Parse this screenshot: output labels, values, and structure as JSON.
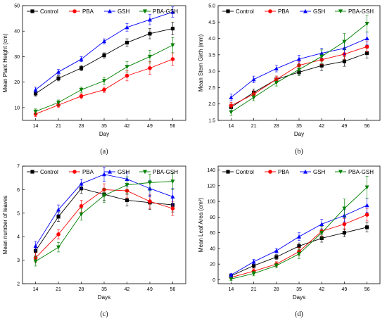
{
  "styles": {
    "Control": {
      "color": "#000000",
      "marker": "square"
    },
    "PBA": {
      "color": "#ff0000",
      "marker": "circle"
    },
    "GSH": {
      "color": "#0000ff",
      "marker": "triangle-up"
    },
    "PBA-GSH": {
      "color": "#008000",
      "marker": "triangle-down"
    }
  },
  "chart_data": [
    {
      "type": "line",
      "panel_label": "(a)",
      "xlabel": "Day",
      "ylabel": "Mean Plant Height (cm)",
      "x": [
        14,
        21,
        28,
        35,
        42,
        49,
        56
      ],
      "ylim": [
        5,
        50
      ],
      "yticks": [
        10,
        20,
        30,
        40,
        50
      ],
      "legend": "top",
      "series": [
        {
          "name": "Control",
          "values": [
            15.5,
            21.5,
            25.5,
            30.5,
            35.5,
            39,
            41
          ],
          "errors": [
            1,
            1,
            1,
            1,
            1.5,
            2,
            2.5
          ]
        },
        {
          "name": "PBA",
          "values": [
            7.5,
            11,
            14.5,
            17,
            22.5,
            25.5,
            29
          ],
          "errors": [
            1,
            1,
            1,
            1,
            2,
            2.5,
            2.5
          ]
        },
        {
          "name": "GSH",
          "values": [
            17,
            24,
            29,
            36,
            41.5,
            44.5,
            47.5
          ],
          "errors": [
            1,
            1,
            1,
            1,
            1.5,
            2,
            2
          ]
        },
        {
          "name": "PBA-GSH",
          "values": [
            8.5,
            12,
            17,
            20.5,
            26,
            30,
            34.5
          ],
          "errors": [
            1,
            1,
            1,
            1.5,
            2,
            2.5,
            3
          ]
        }
      ]
    },
    {
      "type": "line",
      "panel_label": "(b)",
      "xlabel": "Day",
      "ylabel": "Mean Stem Girth (mm)",
      "x": [
        14,
        21,
        28,
        35,
        42,
        49,
        56
      ],
      "ylim": [
        1.5,
        5.0
      ],
      "yticks": [
        1.5,
        2.0,
        2.5,
        3.0,
        3.5,
        4.0,
        4.5,
        5.0
      ],
      "legend": "top",
      "series": [
        {
          "name": "Control",
          "values": [
            1.9,
            2.35,
            2.75,
            2.97,
            3.17,
            3.3,
            3.55
          ],
          "errors": [
            0.1,
            0.1,
            0.1,
            0.1,
            0.15,
            0.15,
            0.15
          ]
        },
        {
          "name": "PBA",
          "values": [
            1.95,
            2.3,
            2.75,
            3.18,
            3.35,
            3.52,
            3.75
          ],
          "errors": [
            0.1,
            0.1,
            0.1,
            0.12,
            0.15,
            0.15,
            0.15
          ]
        },
        {
          "name": "GSH",
          "values": [
            2.2,
            2.75,
            3.08,
            3.37,
            3.55,
            3.7,
            4.0
          ],
          "errors": [
            0.1,
            0.1,
            0.1,
            0.12,
            0.15,
            0.2,
            0.2
          ]
        },
        {
          "name": "PBA-GSH",
          "values": [
            1.75,
            2.2,
            2.65,
            3.05,
            3.45,
            3.9,
            4.45
          ],
          "errors": [
            0.1,
            0.1,
            0.1,
            0.15,
            0.2,
            0.25,
            0.25
          ]
        }
      ]
    },
    {
      "type": "line",
      "panel_label": "(c)",
      "xlabel": "Days",
      "ylabel": "Mean number of leaves",
      "x": [
        14,
        21,
        28,
        35,
        42,
        49,
        56
      ],
      "ylim": [
        2,
        7
      ],
      "yticks": [
        2,
        3,
        4,
        5,
        6,
        7
      ],
      "legend": "top",
      "series": [
        {
          "name": "Control",
          "values": [
            3.4,
            4.85,
            6.05,
            5.8,
            5.55,
            5.45,
            5.35
          ],
          "errors": [
            0.2,
            0.2,
            0.2,
            0.25,
            0.25,
            0.3,
            0.3
          ]
        },
        {
          "name": "PBA",
          "values": [
            3.1,
            4.1,
            5.3,
            6.0,
            5.95,
            5.5,
            5.2
          ],
          "errors": [
            0.2,
            0.2,
            0.25,
            0.25,
            0.3,
            0.3,
            0.3
          ]
        },
        {
          "name": "GSH",
          "values": [
            3.6,
            5.15,
            6.25,
            6.65,
            6.45,
            6.05,
            5.7
          ],
          "errors": [
            0.2,
            0.2,
            0.2,
            0.3,
            0.3,
            0.35,
            0.35
          ]
        },
        {
          "name": "PBA-GSH",
          "values": [
            2.95,
            3.55,
            4.95,
            5.75,
            6.2,
            6.3,
            6.35
          ],
          "errors": [
            0.2,
            0.2,
            0.25,
            0.3,
            0.35,
            0.35,
            0.35
          ]
        }
      ]
    },
    {
      "type": "line",
      "panel_label": "(d)",
      "xlabel": "Days",
      "ylabel": "Mean Leaf Area (cm²)",
      "x": [
        14,
        21,
        28,
        35,
        42,
        49,
        56
      ],
      "ylim": [
        -5,
        145
      ],
      "yticks": [
        0,
        20,
        40,
        60,
        80,
        100,
        120,
        140
      ],
      "legend": "top",
      "series": [
        {
          "name": "Control",
          "values": [
            5,
            18,
            29,
            43,
            53,
            60,
            67
          ],
          "errors": [
            2,
            3,
            3,
            4,
            5,
            5,
            6
          ]
        },
        {
          "name": "PBA",
          "values": [
            3,
            11,
            20,
            36,
            62,
            71,
            83
          ],
          "errors": [
            2,
            3,
            3,
            5,
            6,
            7,
            8
          ]
        },
        {
          "name": "GSH",
          "values": [
            6,
            23,
            37,
            55,
            71,
            82,
            95
          ],
          "errors": [
            2,
            3,
            3,
            5,
            6,
            8,
            9
          ]
        },
        {
          "name": "PBA-GSH",
          "values": [
            1,
            8,
            18,
            33,
            60,
            91,
            118
          ],
          "errors": [
            2,
            3,
            3,
            6,
            8,
            12,
            14
          ]
        }
      ]
    }
  ]
}
